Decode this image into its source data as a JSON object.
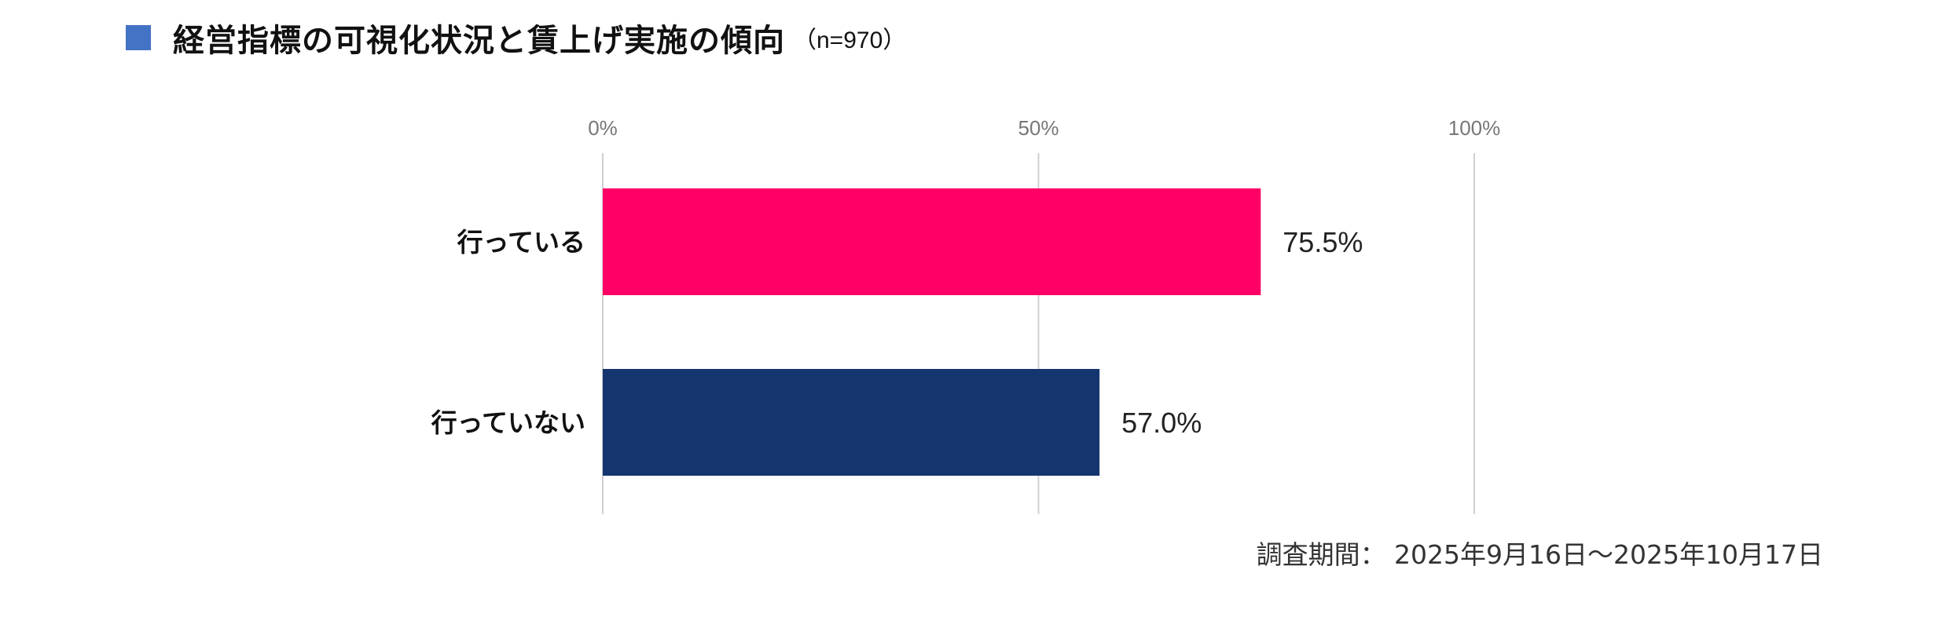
{
  "title": {
    "marker_color": "#4472c4",
    "text": "経営指標の可視化状況と賃上げ実施の傾向",
    "sample": "（n=970）"
  },
  "chart_data": {
    "type": "bar",
    "orientation": "horizontal",
    "categories": [
      "行っている",
      "行っていない"
    ],
    "values": [
      75.5,
      57.0
    ],
    "value_labels": [
      "75.5%",
      "57.0%"
    ],
    "colors": [
      "#ff0066",
      "#14356e"
    ],
    "x_ticks": [
      "0%",
      "50%",
      "100%"
    ],
    "xlim": [
      0,
      100
    ],
    "grid": true,
    "legend": "none"
  },
  "footnote": "調査期間： 2025年9月16日～2025年10月17日"
}
